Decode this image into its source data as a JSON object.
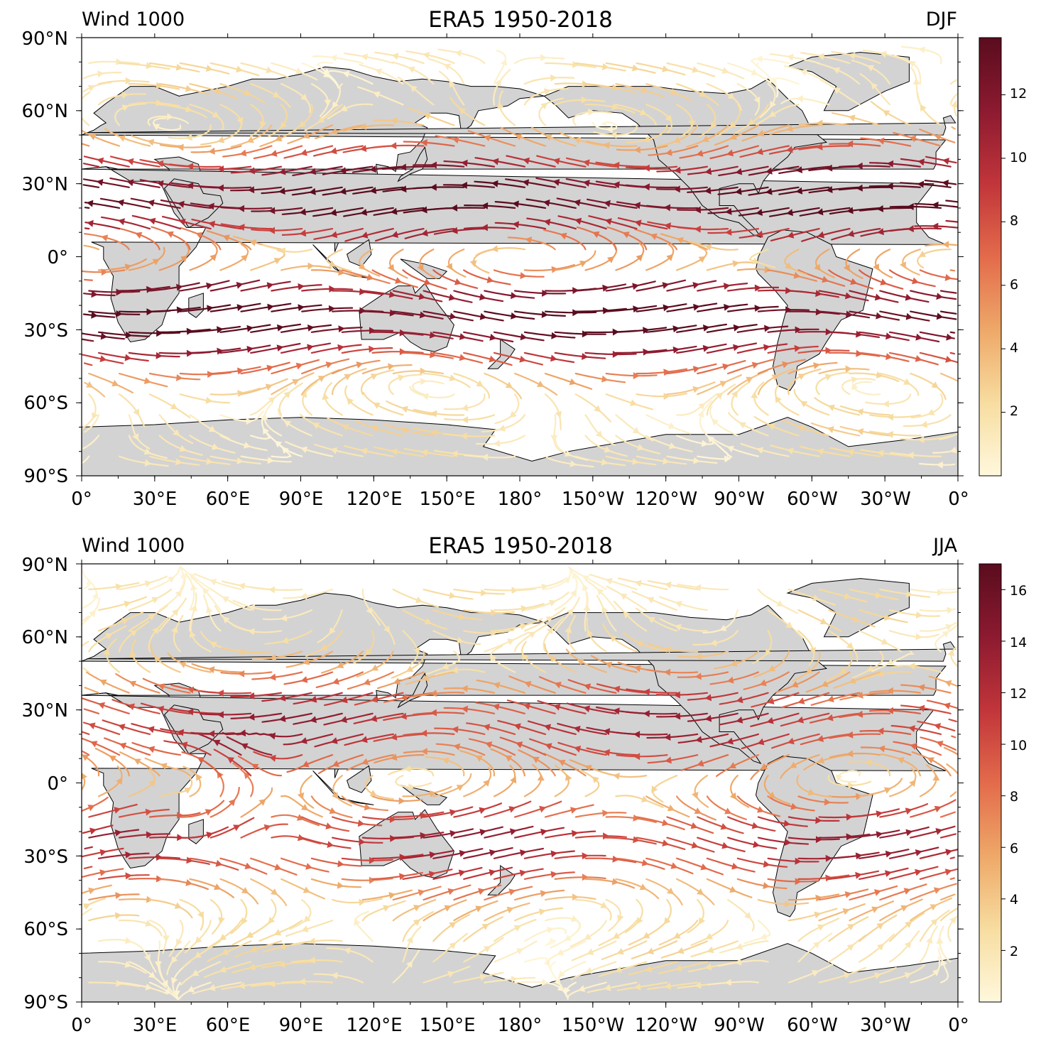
{
  "panels": [
    {
      "title_left": "Wind 1000",
      "title_center": "ERA5 1950-2018",
      "title_right": "DJF",
      "colorbar_ticks": [
        "2",
        "4",
        "6",
        "8",
        "10",
        "12"
      ],
      "colorbar_max": 13.8
    },
    {
      "title_left": "Wind 1000",
      "title_center": "ERA5 1950-2018",
      "title_right": "JJA",
      "colorbar_ticks": [
        "2",
        "4",
        "6",
        "8",
        "10",
        "12",
        "14",
        "16"
      ],
      "colorbar_max": 17.0
    }
  ],
  "y_ticks": [
    "90°N",
    "60°N",
    "30°N",
    "0°",
    "30°S",
    "60°S",
    "90°S"
  ],
  "x_ticks": [
    "0°",
    "30°E",
    "60°E",
    "90°E",
    "120°E",
    "150°E",
    "180°",
    "150°W",
    "120°W",
    "90°W",
    "60°W",
    "30°W",
    "0°"
  ],
  "colors": {
    "land": "#d3d3d3",
    "coast": "#000000",
    "cmap": [
      "#fff8dd",
      "#f7dda0",
      "#eea868",
      "#e36b4b",
      "#c1353a",
      "#8c1a30",
      "#5a0c1e"
    ]
  }
}
